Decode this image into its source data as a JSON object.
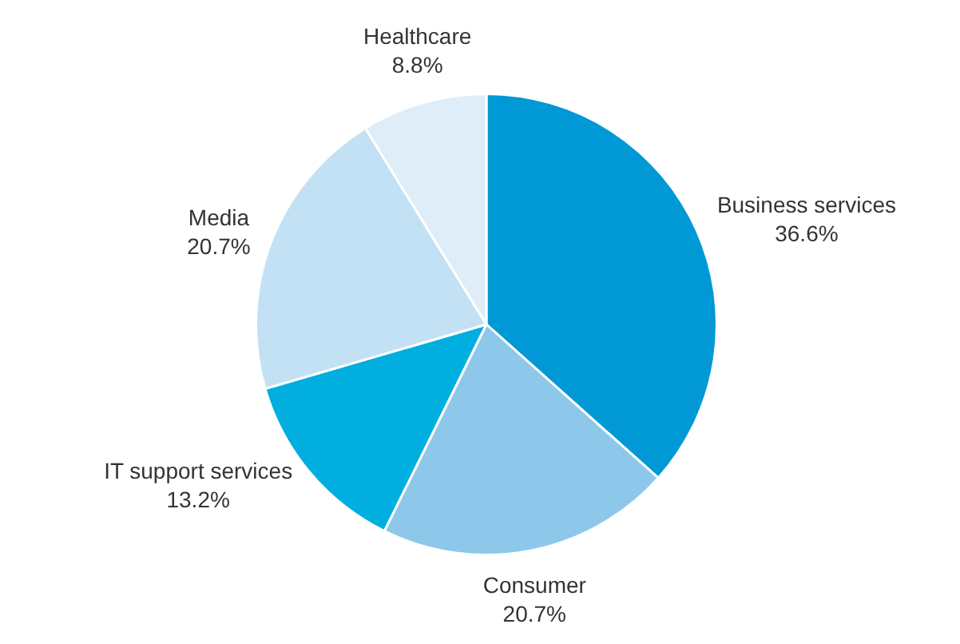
{
  "chart_data": {
    "type": "pie",
    "categories": [
      "Business services",
      "Consumer",
      "IT support services",
      "Media",
      "Healthcare"
    ],
    "values": [
      36.6,
      20.7,
      13.2,
      20.7,
      8.8
    ],
    "value_labels": [
      "36.6%",
      "20.7%",
      "13.2%",
      "20.7%",
      "8.8%"
    ],
    "colors": [
      "#0099d6",
      "#8dc8ea",
      "#00aedf",
      "#c2e1f4",
      "#deedf8"
    ],
    "legend": false
  }
}
